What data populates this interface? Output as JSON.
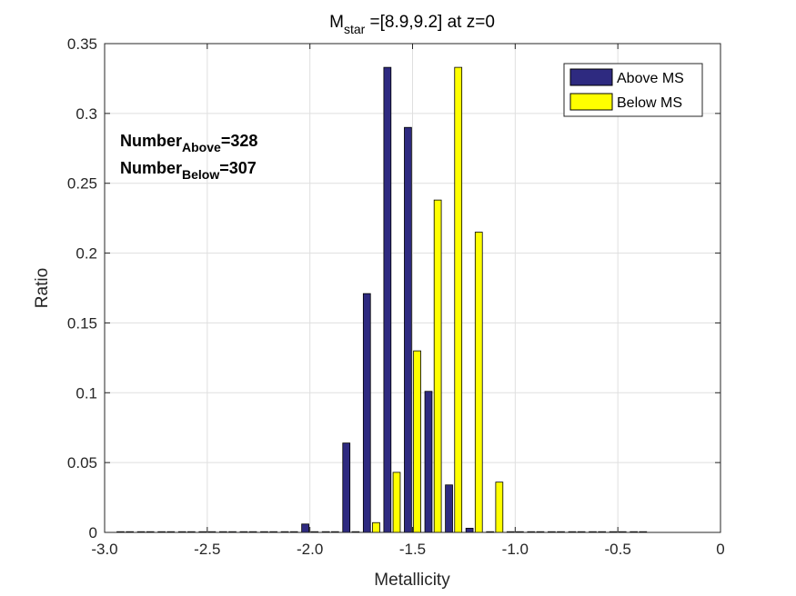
{
  "chart_data": {
    "type": "bar",
    "title_main": "M",
    "title_sub": "star",
    "title_rest": " =[8.9,9.2] at z=0",
    "xlabel": "Metallicity",
    "ylabel": "Ratio",
    "xlim": [
      -3.0,
      0
    ],
    "ylim": [
      0,
      0.35
    ],
    "xticks": [
      -3.0,
      -2.5,
      -2.0,
      -1.5,
      -1.0,
      -0.5,
      0
    ],
    "xtick_labels": [
      "-3.0",
      "-2.5",
      "-2.0",
      "-1.5",
      "-1.0",
      "-0.5",
      "0"
    ],
    "yticks": [
      0,
      0.05,
      0.1,
      0.15,
      0.2,
      0.25,
      0.3,
      0.35
    ],
    "ytick_labels": [
      "0",
      "0.05",
      "0.1",
      "0.15",
      "0.2",
      "0.25",
      "0.3",
      "0.35"
    ],
    "grid": true,
    "legend_position": "top-right",
    "x": [
      -2.9,
      -2.8,
      -2.7,
      -2.6,
      -2.5,
      -2.4,
      -2.3,
      -2.2,
      -2.1,
      -2.0,
      -1.9,
      -1.8,
      -1.7,
      -1.6,
      -1.5,
      -1.4,
      -1.3,
      -1.2,
      -1.1,
      -1.0,
      -0.9,
      -0.8,
      -0.7,
      -0.6,
      -0.5,
      -0.4
    ],
    "series": [
      {
        "name": "Above MS",
        "color": "#2e2a80",
        "values": [
          0,
          0,
          0,
          0,
          0,
          0,
          0,
          0,
          0,
          0.006,
          0,
          0.064,
          0.171,
          0.333,
          0.29,
          0.101,
          0.034,
          0.003,
          0,
          0,
          0,
          0,
          0,
          0,
          0,
          0
        ]
      },
      {
        "name": "Below MS",
        "color": "#ffff00",
        "values": [
          0,
          0,
          0,
          0,
          0,
          0,
          0,
          0,
          0,
          0,
          0,
          0,
          0.007,
          0.043,
          0.13,
          0.238,
          0.333,
          0.215,
          0.036,
          0,
          0,
          0,
          0,
          0,
          0,
          0
        ]
      }
    ],
    "annotations": [
      {
        "main": "Number",
        "sub": "Above",
        "rest": "=328"
      },
      {
        "main": "Number",
        "sub": "Below",
        "rest": "=307"
      }
    ]
  }
}
